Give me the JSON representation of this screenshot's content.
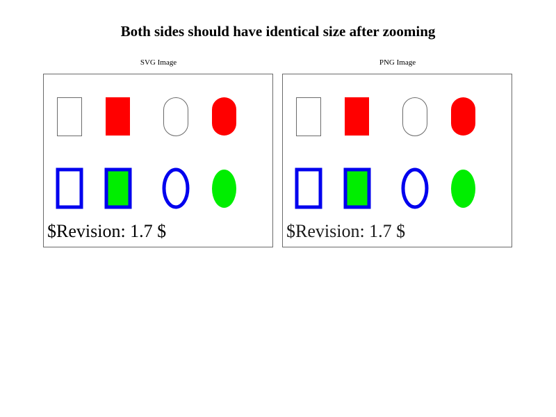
{
  "page": {
    "title": "Both sides should have identical size after zooming"
  },
  "panels": [
    {
      "caption": "SVG Image",
      "revision_text": "$Revision: 1.7 $"
    },
    {
      "caption": "PNG Image",
      "revision_text": "$Revision: 1.7 $"
    }
  ],
  "colors": {
    "red": "#ff0000",
    "blue": "#0000ee",
    "green": "#00ee00",
    "outline_gray": "#6a6a6a"
  }
}
